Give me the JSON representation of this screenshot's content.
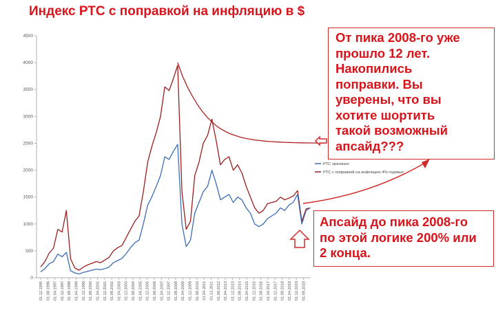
{
  "title": "Индекс РТС с поправкой на инфляцию в $",
  "annotations": {
    "top_box": [
      " От пика 2008-го уже",
      "прошло 12 лет.",
      "Накопились",
      "поправки. Вы",
      "уверены, что вы",
      "хотите шортить",
      "такой возможный",
      "апсайд???"
    ],
    "bottom_box": [
      " Апсайд до пика 2008-го",
      "по этой логике 200% или",
      "2 конца."
    ]
  },
  "colors": {
    "title": "#d8141b",
    "original": "#3a6db5",
    "adjusted": "#9b1c1c",
    "arrow": "#d22828",
    "axis": "#b0b0b0"
  },
  "chart_data": {
    "type": "line",
    "title": "Индекс РТС с поправкой на инфляцию в $",
    "ylim": [
      0,
      4500
    ],
    "yticks": [
      0,
      500,
      1000,
      1500,
      2000,
      2500,
      3000,
      3500,
      4000,
      4500
    ],
    "xtick_labels": [
      "01.12.1995",
      "01.08.1996",
      "01.04.1997",
      "01.12.1997",
      "01.08.1998",
      "01.04.1999",
      "01.12.1999",
      "01.08.2000",
      "01.04.2001",
      "01.12.2001",
      "01.08.2002",
      "01.04.2003",
      "01.12.2003",
      "01.08.2004",
      "01.04.2005",
      "01.12.2005",
      "01.08.2006",
      "01.04.2007",
      "01.12.2007",
      "01.08.2008",
      "01.04.2009",
      "01.12.2009",
      "01.08.2010",
      "01.04.2011",
      "01.12.2011",
      "01.08.2012",
      "01.04.2013",
      "01.12.2013",
      "01.08.2014",
      "01.04.2015",
      "01.12.2015",
      "01.08.2016",
      "01.04.2017",
      "01.12.2017",
      "01.08.2018",
      "01.04.2019",
      "01.12.2019",
      "01.08.2020"
    ],
    "series": [
      {
        "name": "РТС оригинал",
        "color": "#3a6db5",
        "values": [
          110,
          170,
          260,
          300,
          440,
          390,
          470,
          130,
          90,
          70,
          100,
          120,
          140,
          160,
          150,
          170,
          200,
          280,
          320,
          360,
          450,
          560,
          650,
          700,
          1000,
          1350,
          1510,
          1700,
          1900,
          2250,
          2200,
          2350,
          2480,
          1000,
          580,
          700,
          1200,
          1400,
          1600,
          1700,
          2000,
          1750,
          1450,
          1500,
          1550,
          1400,
          1500,
          1450,
          1300,
          1200,
          1000,
          950,
          1000,
          1100,
          1150,
          1200,
          1300,
          1250,
          1350,
          1400,
          1550,
          1000,
          1250,
          1300
        ]
      },
      {
        "name": "РТС с поправкой на инфляцию 4% годовых",
        "color": "#9b1c1c",
        "values": [
          200,
          300,
          460,
          550,
          900,
          850,
          1250,
          350,
          180,
          140,
          200,
          240,
          270,
          300,
          280,
          330,
          380,
          500,
          560,
          600,
          750,
          900,
          1050,
          1150,
          1600,
          2150,
          2450,
          2700,
          3000,
          3550,
          3480,
          3700,
          3950,
          1600,
          900,
          1050,
          1900,
          2150,
          2500,
          2650,
          2950,
          2550,
          2100,
          2200,
          2250,
          2000,
          2100,
          1950,
          1700,
          1500,
          1300,
          1200,
          1250,
          1380,
          1400,
          1420,
          1500,
          1450,
          1480,
          1520,
          1620,
          1050,
          1280,
          1300
        ]
      },
      {
        "name": "",
        "color": "#b02020",
        "dashed_from_peak": true,
        "values_from_peak": [
          4000,
          3750,
          3550,
          3380,
          3230,
          3100,
          2990,
          2900,
          2820,
          2760,
          2710,
          2670,
          2640,
          2610,
          2590,
          2575,
          2560,
          2550,
          2540,
          2533,
          2527,
          2522,
          2518,
          2515,
          2512,
          2510,
          2508,
          2507,
          2506,
          2505,
          2505
        ]
      }
    ]
  }
}
